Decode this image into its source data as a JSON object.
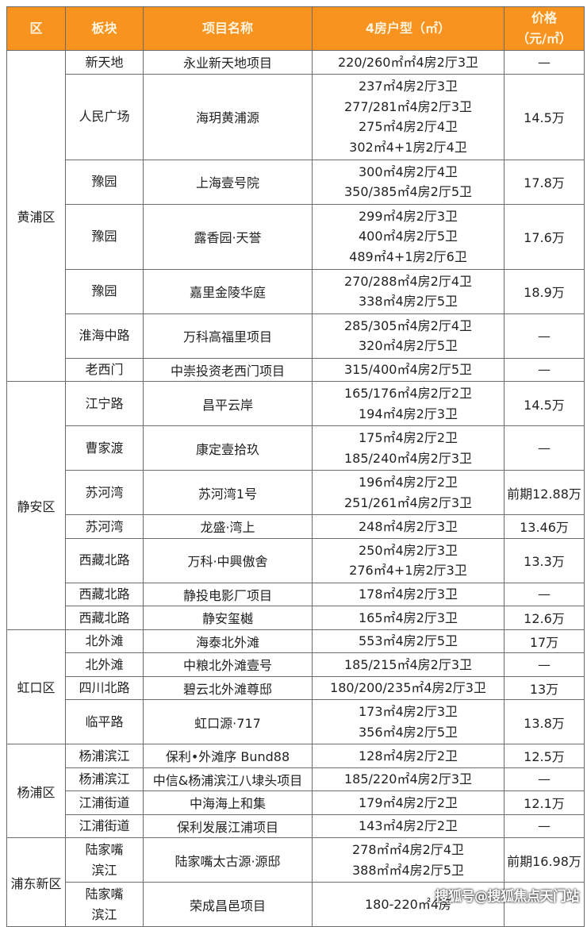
{
  "header": {
    "district": "区",
    "sector": "板块",
    "project": "项目名称",
    "layout": "4房户型（㎡）",
    "price_line1": "价格",
    "price_line2": "（元/㎡）"
  },
  "colors": {
    "header_bg": "#f7931e",
    "header_text": "#fff4e0",
    "border": "#6b6b6b"
  },
  "districts": [
    {
      "name": "黄浦区",
      "rows": [
        {
          "sector": [
            "新天地"
          ],
          "project": "永业新天地项目",
          "layouts": [
            "220/260㎡㎡4房2厅3卫"
          ],
          "price": "—"
        },
        {
          "sector": [
            "人民广场"
          ],
          "project": "海玥黄浦源",
          "layouts": [
            "237㎡4房2厅3卫",
            "277/281㎡4房2厅3卫",
            "275㎡4房2厅4卫",
            "302㎡4+1房2厅4卫"
          ],
          "price": "14.5万"
        },
        {
          "sector": [
            "豫园"
          ],
          "project": "上海壹号院",
          "layouts": [
            "300㎡4房2厅4卫",
            "350/385㎡4房2厅5卫"
          ],
          "price": "17.8万"
        },
        {
          "sector": [
            "豫园"
          ],
          "project": "露香园·天誉",
          "layouts": [
            "299㎡4房2厅3卫",
            "400㎡4房2厅5卫",
            "489㎡4+1房2厅6卫"
          ],
          "price": "17.6万"
        },
        {
          "sector": [
            "豫园"
          ],
          "project": "嘉里金陵华庭",
          "layouts": [
            "270/288㎡4房2厅4卫",
            "338㎡4房2厅5卫"
          ],
          "price": "18.9万"
        },
        {
          "sector": [
            "淮海中路"
          ],
          "project": "万科高福里项目",
          "layouts": [
            "285/305㎡4房2厅4卫",
            "320㎡4房2厅5卫"
          ],
          "price": "—"
        },
        {
          "sector": [
            "老西门"
          ],
          "project": "中崇投资老西门项目",
          "layouts": [
            "315/400㎡4房2厅5卫"
          ],
          "price": "—"
        }
      ]
    },
    {
      "name": "静安区",
      "rows": [
        {
          "sector": [
            "江宁路"
          ],
          "project": "昌平云岸",
          "layouts": [
            "165/176㎡4房2厅2卫",
            "194㎡4房2厅3卫"
          ],
          "price": "14.5万"
        },
        {
          "sector": [
            "曹家渡"
          ],
          "project": "康定壹拾玖",
          "layouts": [
            "175㎡4房2厅2卫",
            "185/240㎡4房2厅3卫"
          ],
          "price": "—"
        },
        {
          "sector": [
            "苏河湾"
          ],
          "project": "苏河湾1号",
          "layouts": [
            "196㎡4房2厅2卫",
            "251/261㎡4房2厅3卫"
          ],
          "price": "前期12.88万"
        },
        {
          "sector": [
            "苏河湾"
          ],
          "project": "龙盛·湾上",
          "layouts": [
            "248㎡4房2厅3卫"
          ],
          "price": "13.46万"
        },
        {
          "sector": [
            "西藏北路"
          ],
          "project": "万科·中興傲舍",
          "layouts": [
            "250㎡4房2厅3卫",
            "276㎡4+1房2厅3卫"
          ],
          "price": "13.3万"
        },
        {
          "sector": [
            "西藏北路"
          ],
          "project": "静投电影厂项目",
          "layouts": [
            "178㎡4房2厅3卫"
          ],
          "price": "—"
        },
        {
          "sector": [
            "西藏北路"
          ],
          "project": "静安玺樾",
          "layouts": [
            "165㎡4房2厅3卫"
          ],
          "price": "12.6万"
        }
      ]
    },
    {
      "name": "虹口区",
      "rows": [
        {
          "sector": [
            "北外滩"
          ],
          "project": "海泰北外滩",
          "layouts": [
            "553㎡4房2厅5卫"
          ],
          "price": "17万"
        },
        {
          "sector": [
            "北外滩"
          ],
          "project": "中粮北外滩壹号",
          "layouts": [
            "185/215㎡4房2厅3卫"
          ],
          "price": "—"
        },
        {
          "sector": [
            "四川北路"
          ],
          "project": "碧云北外滩尊邸",
          "layouts": [
            "180/200/235㎡4房2厅3卫"
          ],
          "price": "13万"
        },
        {
          "sector": [
            "临平路"
          ],
          "project": "虹口源·717",
          "layouts": [
            "173㎡4房2厅3卫",
            "356㎡4房2厅5卫"
          ],
          "price": "13.8万"
        }
      ]
    },
    {
      "name": "杨浦区",
      "rows": [
        {
          "sector": [
            "杨浦滨江"
          ],
          "project": "保利•外滩序 Bund88",
          "layouts": [
            "128㎡4房2厅2卫"
          ],
          "price": "12.5万"
        },
        {
          "sector": [
            "杨浦滨江"
          ],
          "project": "中信&杨浦滨江八埭头项目",
          "layouts": [
            "185/220㎡4房2厅3卫"
          ],
          "price": "—"
        },
        {
          "sector": [
            "江浦街道"
          ],
          "project": "中海海上和集",
          "layouts": [
            "179㎡4房2厅2卫"
          ],
          "price": "12.1万"
        },
        {
          "sector": [
            "江浦街道"
          ],
          "project": "保利发展江浦项目",
          "layouts": [
            "143㎡4房2厅2卫"
          ],
          "price": "—"
        }
      ]
    },
    {
      "name": "浦东新区",
      "rows": [
        {
          "sector": [
            "陆家嘴",
            "滨江"
          ],
          "project": "陆家嘴太古源·源邸",
          "layouts": [
            "278㎡㎡4房2厅4卫",
            "388㎡㎡4房2厅5卫"
          ],
          "price": "前期16.98万"
        },
        {
          "sector": [
            "陆家嘴",
            "滨江"
          ],
          "project": "荣成昌邑项目",
          "layouts": [
            "180-220㎡4房"
          ],
          "price": ""
        }
      ]
    }
  ],
  "watermark": "搜狐号@搜狐焦点天门站"
}
